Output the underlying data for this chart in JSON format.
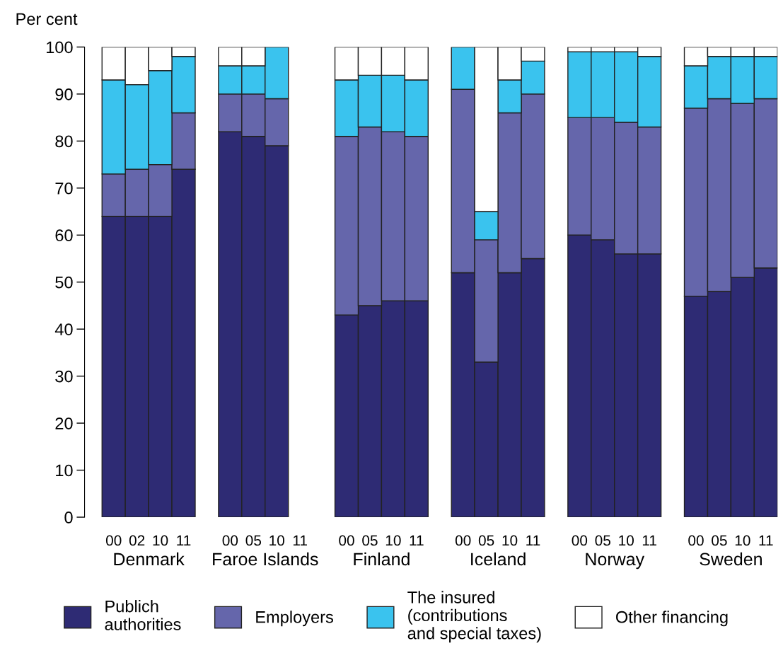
{
  "chart_data": {
    "type": "bar",
    "stacked": true,
    "ylabel": "Per cent",
    "categories": [
      "00",
      "02",
      "10",
      "11",
      null,
      "00",
      "05",
      "10",
      "11",
      null,
      "00",
      "05",
      "10",
      "11",
      null,
      "00",
      "05",
      "10",
      "11",
      null,
      "00",
      "05",
      "10",
      "11",
      null,
      "00",
      "05",
      "10",
      "11"
    ],
    "series": [
      {
        "name": "Publich\nauthorities",
        "color": "#2e2b74",
        "values": [
          64,
          64,
          64,
          74,
          null,
          82,
          81,
          79,
          null,
          null,
          43,
          45,
          46,
          46,
          null,
          52,
          33,
          52,
          55,
          null,
          60,
          59,
          56,
          56,
          null,
          47,
          48,
          51,
          53
        ]
      },
      {
        "name": "Employers",
        "color": "#6566ab",
        "values": [
          9,
          10,
          11,
          12,
          null,
          8,
          9,
          10,
          null,
          null,
          38,
          38,
          36,
          35,
          null,
          39,
          26,
          34,
          35,
          null,
          25,
          26,
          28,
          27,
          null,
          40,
          41,
          37,
          36
        ]
      },
      {
        "name": "The insured\n(contributions\nand special taxes)",
        "color": "#3ac3ee",
        "values": [
          20,
          18,
          20,
          12,
          null,
          6,
          6,
          11,
          null,
          null,
          12,
          11,
          12,
          12,
          null,
          9,
          6,
          7,
          7,
          null,
          14,
          14,
          15,
          15,
          null,
          9,
          9,
          10,
          9
        ]
      },
      {
        "name": "Other financing",
        "color": "#ffffff",
        "values": [
          7,
          8,
          5,
          2,
          null,
          4,
          4,
          0,
          null,
          null,
          7,
          6,
          6,
          7,
          null,
          0,
          35,
          7,
          3,
          null,
          1,
          1,
          1,
          2,
          null,
          4,
          2,
          2,
          2
        ]
      }
    ],
    "annotations": [
      "Denmark",
      "Faroe Islands",
      "Finland",
      "Iceland",
      "Norway",
      "Sweden"
    ],
    "ylim": [
      0,
      100
    ],
    "yticks": [
      0,
      10,
      20,
      30,
      40,
      50,
      60,
      70,
      80,
      90,
      100
    ],
    "grid": false,
    "legend": "bottom"
  }
}
